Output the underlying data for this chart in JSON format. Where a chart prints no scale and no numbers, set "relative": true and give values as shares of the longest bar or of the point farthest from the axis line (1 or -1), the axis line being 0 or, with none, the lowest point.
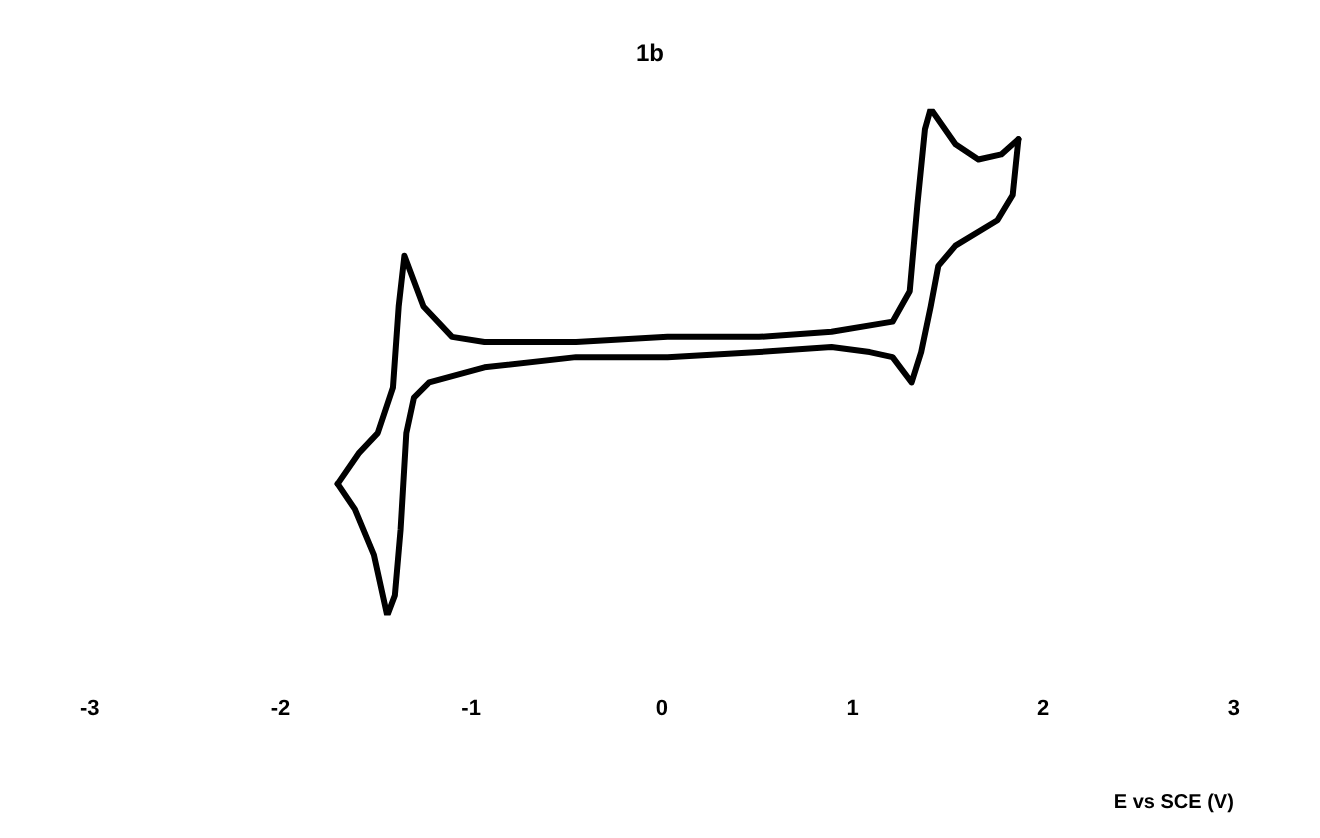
{
  "chart_data": {
    "type": "line",
    "title": "1b",
    "xlabel": "E vs SCE (V)",
    "relative": true,
    "series": [
      {
        "color": "#000000",
        "x": [
          -1.7,
          -1.59,
          -1.49,
          -1.41,
          -1.38,
          -1.35,
          -1.25,
          -1.1,
          -0.93,
          -0.45,
          0.03,
          0.51,
          0.89,
          1.21,
          1.3,
          1.34,
          1.38,
          1.41,
          1.54,
          1.66,
          1.78,
          1.87
        ],
        "values": [
          0.26,
          0.32,
          0.36,
          0.45,
          0.61,
          0.71,
          0.61,
          0.55,
          0.54,
          0.54,
          0.55,
          0.55,
          0.56,
          0.58,
          0.64,
          0.81,
          0.96,
          1.0,
          0.93,
          0.9,
          0.91,
          0.94
        ]
      },
      {
        "color": "#000000",
        "x": [
          1.87,
          1.84,
          1.76,
          1.54,
          1.45,
          1.41,
          1.36,
          1.31,
          1.21,
          1.09,
          0.89,
          0.51,
          0.03,
          -0.45,
          -0.93,
          -1.22,
          -1.3,
          -1.34,
          -1.37,
          -1.4,
          -1.44,
          -1.51,
          -1.61,
          -1.7
        ],
        "values": [
          0.94,
          0.83,
          0.78,
          0.73,
          0.69,
          0.61,
          0.52,
          0.46,
          0.51,
          0.52,
          0.53,
          0.52,
          0.51,
          0.51,
          0.49,
          0.46,
          0.43,
          0.36,
          0.17,
          0.04,
          0,
          0.12,
          0.21,
          0.26
        ]
      }
    ],
    "xlim": [
      -3,
      3
    ],
    "xticks": [
      -3,
      -2,
      -1,
      0,
      1,
      2,
      3
    ],
    "grid": false,
    "legend": false,
    "marker": "none",
    "line_style": "solid"
  }
}
